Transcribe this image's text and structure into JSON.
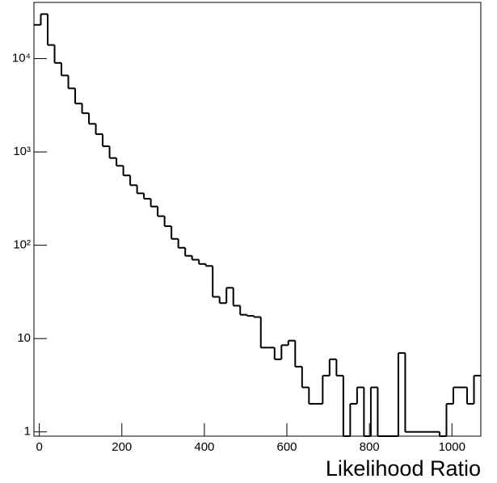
{
  "chart_data": {
    "type": "histogram",
    "xlabel": "Likelihood Ratio",
    "color": "#000000",
    "log_y": true,
    "bins": [
      -13,
      3.66,
      20.32,
      36.98,
      53.65,
      70.31,
      86.97,
      103.63,
      120.29,
      136.95,
      153.62,
      170.28,
      186.94,
      203.6,
      220.26,
      236.92,
      253.58,
      270.25,
      286.91,
      303.57,
      320.23,
      336.89,
      353.55,
      370.22,
      386.88,
      403.54,
      420.2,
      436.86,
      453.52,
      470.18,
      486.85,
      503.51,
      520.17,
      536.83,
      553.49,
      570.15,
      586.82,
      603.48,
      620.14,
      636.8,
      653.46,
      670.12,
      686.78,
      703.45,
      720.11,
      736.77,
      753.43,
      770.09,
      786.75,
      803.42,
      820.08,
      836.74,
      853.4,
      870.06,
      886.72,
      903.38,
      920.05,
      936.71,
      953.37,
      970.03,
      986.69,
      1003.35,
      1020.02,
      1036.68,
      1053.34,
      1070
    ],
    "values": [
      23000,
      30000,
      14000,
      9000,
      6600,
      4800,
      3300,
      2600,
      2000,
      1550,
      1150,
      860,
      710,
      560,
      440,
      360,
      315,
      260,
      205,
      160,
      117,
      94,
      77,
      70,
      63,
      60,
      28,
      24,
      35,
      22.5,
      18,
      17.5,
      17,
      8,
      8,
      6,
      8.5,
      9.5,
      5,
      3,
      2,
      2,
      4,
      6,
      4,
      0,
      2,
      3,
      0,
      3,
      0,
      0,
      0,
      7,
      1,
      1,
      1,
      1,
      1,
      0,
      2,
      3,
      3,
      2,
      4
    ],
    "xlim": [
      -13,
      1070
    ],
    "xticks": [
      0,
      200,
      400,
      600,
      800,
      1000
    ],
    "ylim": [
      0.9,
      40000
    ],
    "yticks": [
      1,
      10,
      {
        "value": 100,
        "label": "10²"
      },
      {
        "value": 1000,
        "label": "10³"
      },
      {
        "value": 10000,
        "label": "10⁴"
      }
    ]
  }
}
